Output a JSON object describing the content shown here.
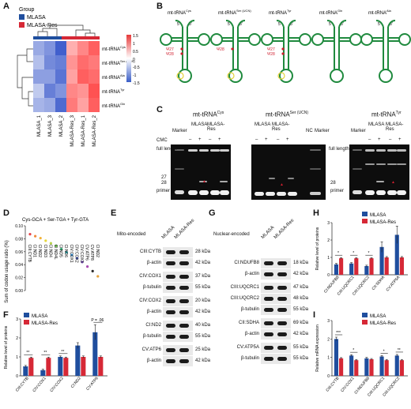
{
  "panels": {
    "A": "A",
    "B": "B",
    "C": "C",
    "D": "D",
    "E": "E",
    "F": "F",
    "G": "G",
    "H": "H",
    "I": "I"
  },
  "colors": {
    "mlasa": "#1f4e9e",
    "mlasa_res": "#d62836",
    "trna_green": "#1f8a3e",
    "pseudoU_red": "#d01f2f",
    "hot": "#e63a3a",
    "cold": "#3a5ec7"
  },
  "heatmap": {
    "legend_title": "Group",
    "legend": [
      "MLASA",
      "MLASA-Res"
    ],
    "rows": [
      "mt-tRNACys",
      "mt-tRNASer (UCN)",
      "mt-tRNAAla",
      "mt-tRNATyr",
      "mt-tRNAGln"
    ],
    "row_base": [
      "mt-tRNA",
      "mt-tRNA",
      "mt-tRNA",
      "mt-tRNA",
      "mt-tRNA"
    ],
    "row_sup": [
      "Cys",
      "Ser (UCN)",
      "Ala",
      "Tyr",
      "Gln"
    ],
    "cols": [
      "MLASA_1",
      "MLASA_3",
      "MLASA_2",
      "MLASA-Res_3",
      "MLASA-Res_1",
      "MLASA-Res_2"
    ],
    "values": [
      [
        -0.8,
        -1.0,
        -1.5,
        0.6,
        0.9,
        1.2
      ],
      [
        -0.6,
        -1.1,
        -1.2,
        0.8,
        1.1,
        1.0
      ],
      [
        -0.9,
        -0.9,
        -1.3,
        0.7,
        1.2,
        1.1
      ],
      [
        -0.5,
        -1.2,
        -1.0,
        0.9,
        0.8,
        1.3
      ],
      [
        -0.7,
        -0.8,
        -1.4,
        1.0,
        0.7,
        1.2
      ]
    ],
    "scale_ticks": [
      "1.5",
      "1",
      "0.5",
      "0",
      "-0.5",
      "-1",
      "-1.5"
    ]
  },
  "trna": {
    "names_base": [
      "mt-tRNA",
      "mt-tRNA",
      "mt-tRNA",
      "mt-tRNA",
      "mt-tRNA"
    ],
    "names_sup": [
      "Cys",
      "Ser (UCN)",
      "Tyr",
      "Gln",
      "Ala"
    ],
    "five": "5'",
    "three": "3'",
    "mods": [
      [
        "Ψ27",
        "Ψ28"
      ],
      [
        "Ψ28"
      ],
      [
        "Ψ27",
        "Ψ28"
      ],
      [],
      []
    ]
  },
  "gels": {
    "titles_base": [
      "mt-tRNA",
      "mt-tRNA",
      "mt-tRNA"
    ],
    "titles_sup": [
      "Cys",
      "Ser (UCN)",
      "Tyr"
    ],
    "marker": "Marker",
    "mlasa": "MLASA",
    "mlasa_res": "MLASA-Res",
    "nc": "NC",
    "cmc": "CMC",
    "minus": "–",
    "plus": "+",
    "full_length": "full length",
    "primer": "primer",
    "n27": "27",
    "n28": "28"
  },
  "codon": {
    "title": "Cys-GCA + Ser-TGA + Tyr-GTA",
    "ylabel": "Sum of codon usage ratio (%)",
    "yticks": [
      "0.10",
      "0.08",
      "0.06",
      "0.04",
      "0.02",
      "0.00"
    ],
    "genes": [
      "CIII:CYTB",
      "CI:ND1",
      "CI:ND2",
      "CI:ND3",
      "CI:ND4",
      "CI:ND4L",
      "CI:ND5",
      "CI:ND6",
      "CIV:COX1",
      "CIV:COX2",
      "CIV:COX3",
      "CV:ATP6",
      "CV:ATP8",
      "CI:ND2"
    ],
    "values": [
      0.087,
      0.084,
      0.081,
      0.077,
      0.073,
      0.069,
      0.064,
      0.059,
      0.055,
      0.05,
      0.044,
      0.037,
      0.03,
      0.022
    ],
    "dot_colors": [
      "#e8474b",
      "#f08a3c",
      "#f3b33a",
      "#e7d83c",
      "#b7d24a",
      "#6cc24c",
      "#38b47c",
      "#2fb0b7",
      "#3b8fd0",
      "#5567c9",
      "#7c54bf",
      "#a94bb2",
      "#2a2a2a",
      "#e6a23a"
    ]
  },
  "wbE": {
    "title": "Mito-encoded",
    "lanes": [
      "MLASA",
      "MLASA-Res"
    ],
    "rows": [
      {
        "label": "CIII:CYTB",
        "kda": "28 kDa"
      },
      {
        "label": "β-actin",
        "kda": "42 kDa"
      },
      {
        "label": "CIV:COX1",
        "kda": "37 kDa"
      },
      {
        "label": "β-tubulin",
        "kda": "55 kDa"
      },
      {
        "label": "CIV:COX2",
        "kda": "20 kDa"
      },
      {
        "label": "β-actin",
        "kda": "42 kDa"
      },
      {
        "label": "CI:ND2",
        "kda": "40 kDa"
      },
      {
        "label": "β-tubulin",
        "kda": "55 kDa"
      },
      {
        "label": "CV:ATP6",
        "kda": "25 kDa"
      },
      {
        "label": "β-actin",
        "kda": "42 kDa"
      }
    ]
  },
  "wbG": {
    "title": "Nuclear-encoded",
    "lanes": [
      "MLASA",
      "MLASA-Res"
    ],
    "rows": [
      {
        "label": "CI:NDUFB8",
        "kda": "18 kDa"
      },
      {
        "label": "β-actin",
        "kda": "42 kDa"
      },
      {
        "label": "CIII:UQCRC1",
        "kda": "47 kDa"
      },
      {
        "label": "CIII:UQCRC2",
        "kda": "48 kDa"
      },
      {
        "label": "β-tubulin",
        "kda": "55 kDa"
      },
      {
        "label": "CII:SDHA",
        "kda": "69 kDa"
      },
      {
        "label": "β-actin",
        "kda": "42 kDa"
      },
      {
        "label": "CV:ATP5A",
        "kda": "55 kDa"
      },
      {
        "label": "β-tubulin",
        "kda": "55 kDa"
      }
    ]
  },
  "chart_data": [
    {
      "panel": "F",
      "type": "bar",
      "ylabel": "Relative level of proteins",
      "ylim": [
        0,
        3
      ],
      "yticks": [
        0,
        1,
        2,
        3
      ],
      "categories": [
        "CIII:CYTB",
        "CIV:COX1",
        "CIV:COX2",
        "CI:ND2",
        "CV:ATP6"
      ],
      "series": [
        {
          "name": "MLASA",
          "values": [
            0.5,
            0.3,
            1.0,
            1.6,
            2.3
          ],
          "err": [
            0.05,
            0.05,
            0.05,
            0.15,
            0.4
          ]
        },
        {
          "name": "MLASA-Res",
          "values": [
            0.95,
            0.95,
            0.95,
            1.0,
            1.0
          ],
          "err": [
            0.04,
            0.04,
            0.04,
            0.05,
            0.05
          ]
        }
      ],
      "sig": [
        "**",
        "**",
        "**",
        "",
        "P = .06"
      ],
      "legend": "top-left"
    },
    {
      "panel": "H",
      "type": "bar",
      "ylabel": "Relative level of proteins",
      "ylim": [
        0,
        3
      ],
      "yticks": [
        0,
        1,
        2,
        3
      ],
      "categories": [
        "CI:NDUFB8",
        "CIII:UQCRC1",
        "CIII:UQCRC2",
        "CII:SDHA",
        "CV:ATP5A"
      ],
      "series": [
        {
          "name": "MLASA",
          "values": [
            0.6,
            0.65,
            0.5,
            1.6,
            2.3
          ],
          "err": [
            0.05,
            0.05,
            0.05,
            0.3,
            0.5
          ]
        },
        {
          "name": "MLASA-Res",
          "values": [
            0.95,
            0.95,
            0.95,
            1.0,
            1.0
          ],
          "err": [
            0.04,
            0.04,
            0.04,
            0.05,
            0.05
          ]
        }
      ],
      "sig": [
        "*",
        "*",
        "*",
        "",
        ""
      ],
      "legend": "top-right"
    },
    {
      "panel": "I",
      "type": "bar",
      "ylabel": "Relative mRNA expression",
      "ylim": [
        0,
        3
      ],
      "yticks": [
        0,
        1,
        2,
        3
      ],
      "categories": [
        "CIII:CYTB",
        "CIV:COX1",
        "CI:NDUFB8",
        "CIII:UQCRC1",
        "CIII:UQCRC2"
      ],
      "series": [
        {
          "name": "MLASA",
          "values": [
            2.0,
            1.1,
            0.95,
            1.05,
            1.1
          ],
          "err": [
            0.1,
            0.05,
            0.05,
            0.05,
            0.06
          ]
        },
        {
          "name": "MLASA-Res",
          "values": [
            0.95,
            0.85,
            0.9,
            0.85,
            0.85
          ],
          "err": [
            0.04,
            0.04,
            0.04,
            0.04,
            0.04
          ]
        }
      ],
      "sig": [
        "***",
        "*",
        "",
        "*",
        "**"
      ],
      "legend": "top-right"
    }
  ]
}
